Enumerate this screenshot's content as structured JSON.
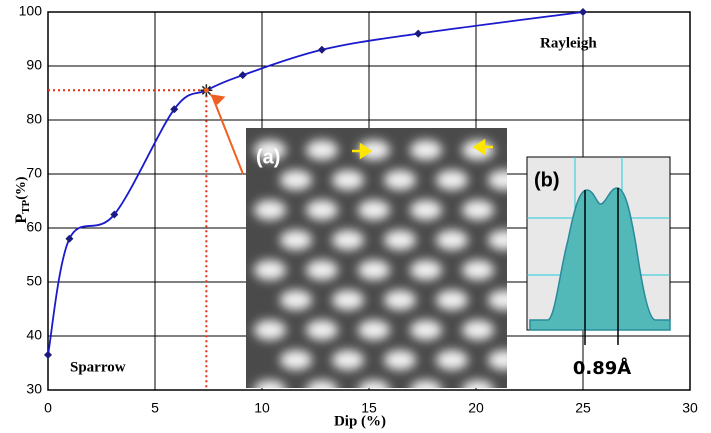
{
  "chart_data": {
    "type": "line",
    "x_label": "Dip (%)",
    "y_label": "P",
    "y_label_sub": "TP",
    "y_label_suffix": "(%)",
    "x": [
      0,
      1,
      3.1,
      5.9,
      7.4,
      9.1,
      12.8,
      17.3,
      25
    ],
    "series": [
      {
        "color": "#1a1acc",
        "values": [
          36.5,
          58,
          62.5,
          82,
          85.5,
          88.3,
          93,
          96,
          100
        ]
      }
    ],
    "xlim": [
      0,
      30
    ],
    "xticks": [
      0,
      5,
      10,
      15,
      20,
      25,
      30
    ],
    "ylim": [
      30,
      100
    ],
    "yticks": [
      30,
      40,
      50,
      60,
      70,
      80,
      90,
      100
    ],
    "grid": true,
    "annotations": {
      "rayleigh": "Rayleigh",
      "sparrow": "Sparrow",
      "inset_a": "(a)",
      "inset_b": "(b)",
      "distance": "0.89Å"
    }
  }
}
